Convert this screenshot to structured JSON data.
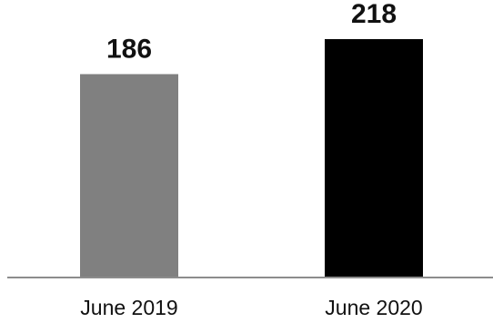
{
  "chart_data": {
    "type": "bar",
    "categories": [
      "June 2019",
      "June 2020"
    ],
    "values": [
      186,
      218
    ],
    "data_labels": [
      "186",
      "218"
    ],
    "colors": [
      "#808080",
      "#000000"
    ],
    "axis_color": "#8c8c8c",
    "title": "",
    "xlabel": "",
    "ylabel": "",
    "grid": false,
    "legend": "none"
  }
}
